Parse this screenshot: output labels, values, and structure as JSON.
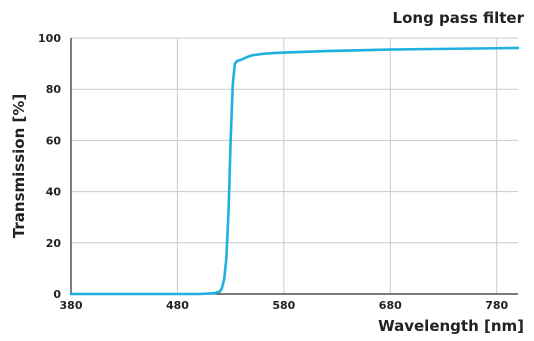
{
  "chart_data": {
    "type": "line",
    "title": "Long pass filter",
    "xlabel": "Wavelength [nm]",
    "ylabel": "Transmission [%]",
    "xlim": [
      380,
      800
    ],
    "ylim": [
      0,
      100
    ],
    "xticks": [
      380,
      480,
      580,
      680,
      780
    ],
    "yticks": [
      0,
      20,
      40,
      60,
      80,
      100
    ],
    "grid": true,
    "series": [
      {
        "color": "#1fb0e0",
        "x": [
          380,
          420,
          460,
          500,
          515,
          520,
          522,
          524,
          526,
          528,
          530,
          532,
          534,
          536,
          540,
          545,
          550,
          560,
          570,
          580,
          600,
          620,
          640,
          660,
          680,
          700,
          720,
          740,
          760,
          780,
          800
        ],
        "y": [
          0,
          0,
          0,
          0,
          0.3,
          1,
          2.5,
          6,
          14,
          32,
          60,
          82,
          90,
          91,
          91.5,
          92.5,
          93.2,
          93.8,
          94.1,
          94.3,
          94.6,
          94.9,
          95.1,
          95.3,
          95.5,
          95.6,
          95.7,
          95.8,
          95.9,
          96.0,
          96.1
        ]
      }
    ]
  }
}
